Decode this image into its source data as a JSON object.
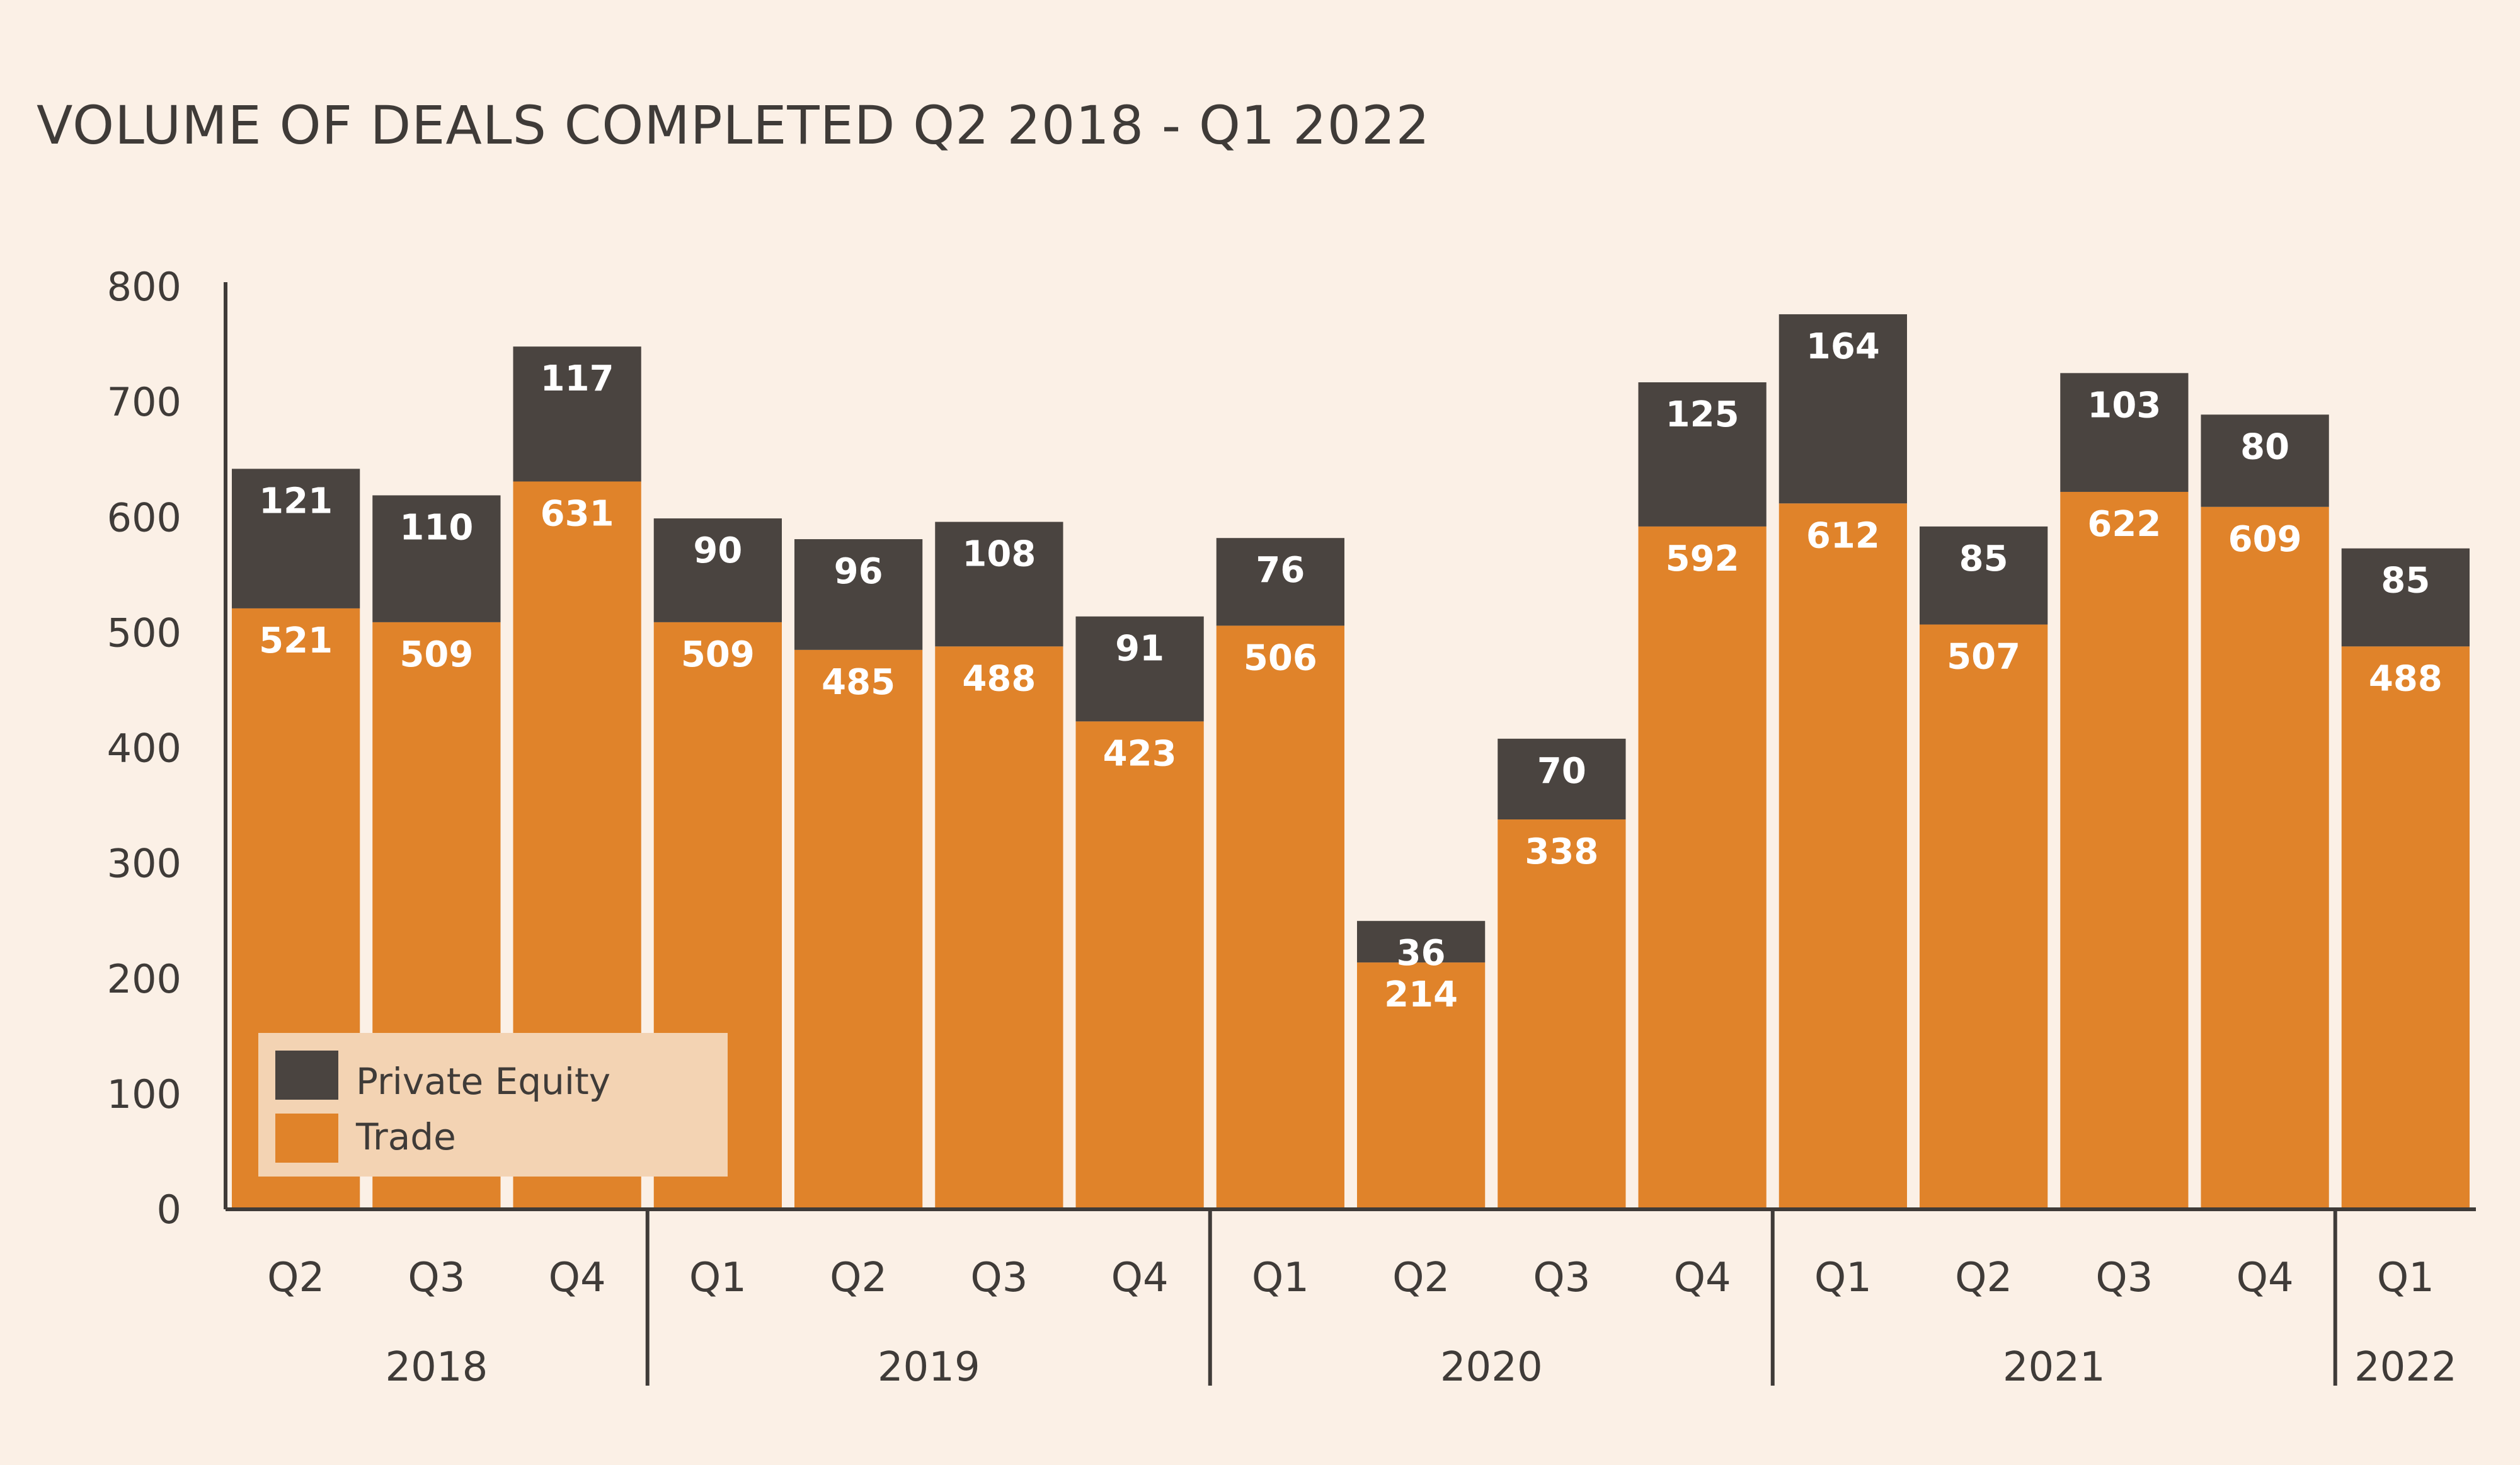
{
  "title": "VOLUME OF DEALS COMPLETED Q2 2018 - Q1 2022",
  "colors": {
    "background": "#fbf0e6",
    "trade": "#e0832a",
    "private_equity": "#4a4440",
    "axis": "#3f3b38",
    "legend_bg": "#f3d3b3"
  },
  "chart_data": {
    "type": "bar",
    "stacked": true,
    "title": "VOLUME OF DEALS COMPLETED Q2 2018 - Q1 2022",
    "xlabel": "",
    "ylabel": "",
    "ylim": [
      0,
      800
    ],
    "yticks": [
      0,
      100,
      200,
      300,
      400,
      500,
      600,
      700,
      800
    ],
    "grid": false,
    "legend_position": "bottom-left",
    "categories": [
      "Q2",
      "Q3",
      "Q4",
      "Q1",
      "Q2",
      "Q3",
      "Q4",
      "Q1",
      "Q2",
      "Q3",
      "Q4",
      "Q1",
      "Q2",
      "Q3",
      "Q4",
      "Q1"
    ],
    "year_groups": [
      {
        "label": "2018",
        "count": 3
      },
      {
        "label": "2019",
        "count": 4
      },
      {
        "label": "2020",
        "count": 4
      },
      {
        "label": "2021",
        "count": 4
      },
      {
        "label": "2022",
        "count": 1
      }
    ],
    "series": [
      {
        "name": "Trade",
        "values": [
          521,
          509,
          631,
          509,
          485,
          488,
          423,
          506,
          214,
          338,
          592,
          612,
          507,
          622,
          609,
          488
        ]
      },
      {
        "name": "Private Equity",
        "values": [
          121,
          110,
          117,
          90,
          96,
          108,
          91,
          76,
          36,
          70,
          125,
          164,
          85,
          103,
          80,
          85
        ]
      }
    ]
  }
}
